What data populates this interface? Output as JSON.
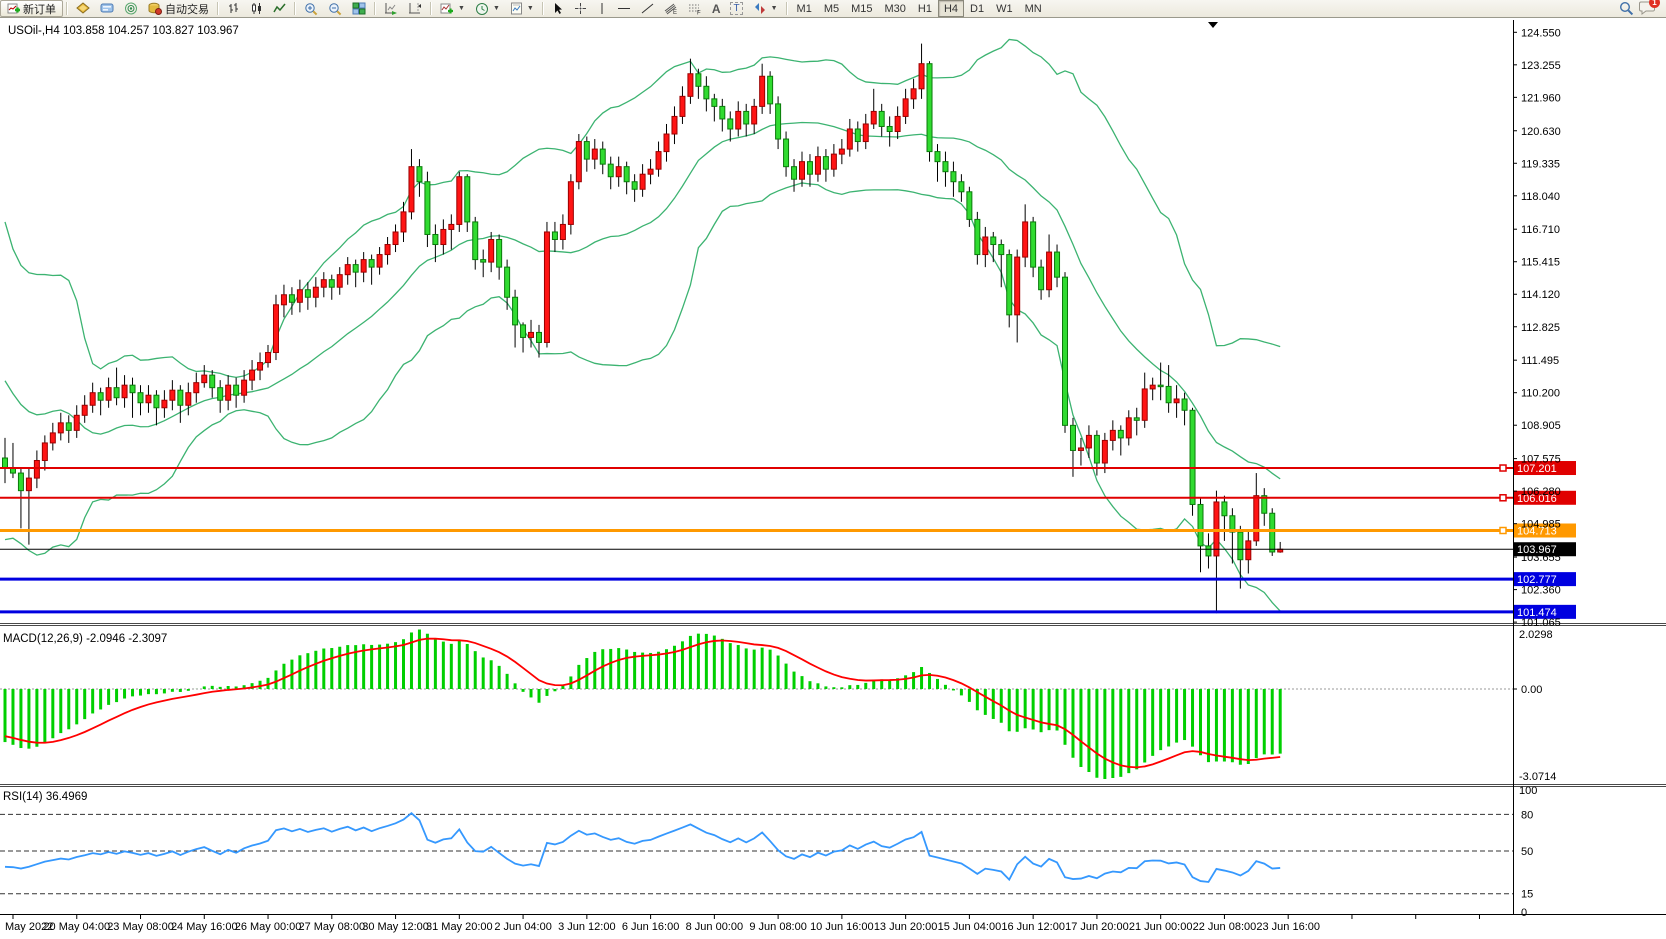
{
  "toolbar": {
    "new_order_label": "新订单",
    "auto_trading_label": "自动交易",
    "timeframes": [
      "M1",
      "M5",
      "M15",
      "M30",
      "H1",
      "H4",
      "D1",
      "W1",
      "MN"
    ],
    "active_timeframe": "H4",
    "text_tool_glyph": "A",
    "label_tool_glyph": "T",
    "chat_badge": "1"
  },
  "chart": {
    "symbol_label": "USOil-,H4",
    "ohlc_label": "103.858 104.257 103.827 103.967",
    "price_axis_ticks": [
      "124.550",
      "123.255",
      "121.960",
      "120.630",
      "119.335",
      "118.040",
      "116.710",
      "115.415",
      "114.120",
      "112.825",
      "111.495",
      "110.200",
      "108.905",
      "107.575",
      "106.280",
      "104.985",
      "103.655",
      "102.360",
      "101.065"
    ],
    "hlines": [
      {
        "price": 107.201,
        "label": "107.201",
        "color": "#e00000",
        "width": 2,
        "marker": true
      },
      {
        "price": 106.016,
        "label": "106.016",
        "color": "#e00000",
        "width": 2,
        "marker": true
      },
      {
        "price": 104.713,
        "label": "104.713",
        "color": "#ff9900",
        "width": 3,
        "marker": true
      },
      {
        "price": 103.967,
        "label": "103.967",
        "color": "#000000",
        "width": 1,
        "marker": false
      },
      {
        "price": 102.777,
        "label": "102.777",
        "color": "#0000e0",
        "width": 3,
        "marker": false
      },
      {
        "price": 101.474,
        "label": "101.474",
        "color": "#0000e0",
        "width": 3,
        "marker": false
      }
    ],
    "time_axis_labels": [
      "May 2022",
      "20 May 04:00",
      "23 May 08:00",
      "24 May 16:00",
      "26 May 00:00",
      "27 May 08:00",
      "30 May 12:00",
      "31 May 20:00",
      "2 Jun 04:00",
      "3 Jun 12:00",
      "6 Jun 16:00",
      "8 Jun 00:00",
      "9 Jun 08:00",
      "10 Jun 16:00",
      "13 Jun 20:00",
      "15 Jun 04:00",
      "16 Jun 12:00",
      "17 Jun 20:00",
      "21 Jun 00:00",
      "22 Jun 08:00",
      "23 Jun 16:00"
    ]
  },
  "macd": {
    "label": "MACD(12,26,9)",
    "values_label": "-2.0946 -2.3097",
    "params": [
      12,
      26,
      9
    ],
    "axis_labels": [
      "2.0298",
      "0.00",
      "-3.0714"
    ],
    "max": 2.0298,
    "min": -3.0714,
    "histogram_color": "#00cf00",
    "signal_color": "#ff0000"
  },
  "rsi": {
    "label": "RSI(14)",
    "value_label": "36.4969",
    "period": 14,
    "levels": [
      80,
      50,
      15
    ],
    "axis_labels": [
      "100",
      "80",
      "50",
      "15",
      "0"
    ],
    "line_color": "#3598fe"
  },
  "chart_data": {
    "type": "candlestick",
    "symbol": "USOil",
    "timeframe": "H4",
    "up_color": "#ff1414",
    "down_color": "#30db30",
    "band_color": "#3cb371",
    "label_every_n_bars": 8,
    "prehistory_closes": [
      116.5,
      117.2,
      115.0,
      112.5,
      110.0,
      107.5,
      106.5,
      108.0,
      111.5,
      114.5,
      116.0,
      114.0,
      111.0,
      108.5,
      107.0,
      108.5,
      110.0,
      111.0,
      110.0,
      107.6
    ],
    "bars": [
      [
        108.4,
        106.6,
        107.2
      ],
      [
        108.2,
        106.8,
        107.0
      ],
      [
        107.2,
        104.8,
        106.3
      ],
      [
        107.2,
        104.15,
        106.8
      ],
      [
        107.9,
        106.4,
        107.5
      ],
      [
        108.5,
        107.1,
        108.2
      ],
      [
        109.0,
        107.9,
        108.6
      ],
      [
        109.4,
        108.3,
        109.0
      ],
      [
        109.3,
        108.2,
        108.7
      ],
      [
        109.7,
        108.4,
        109.3
      ],
      [
        110.1,
        109.0,
        109.7
      ],
      [
        110.6,
        109.4,
        110.2
      ],
      [
        110.4,
        109.3,
        109.9
      ],
      [
        110.8,
        109.6,
        110.4
      ],
      [
        111.2,
        109.7,
        110.0
      ],
      [
        110.9,
        109.6,
        110.5
      ],
      [
        110.8,
        109.2,
        110.2
      ],
      [
        110.5,
        109.3,
        109.8
      ],
      [
        110.5,
        109.4,
        110.1
      ],
      [
        110.3,
        108.9,
        109.6
      ],
      [
        110.3,
        109.2,
        109.9
      ],
      [
        110.7,
        109.5,
        110.3
      ],
      [
        110.5,
        109.0,
        109.7
      ],
      [
        110.6,
        109.3,
        110.2
      ],
      [
        111.0,
        109.8,
        110.6
      ],
      [
        111.3,
        110.4,
        110.9
      ],
      [
        111.1,
        110.0,
        110.4
      ],
      [
        110.7,
        109.4,
        109.9
      ],
      [
        110.9,
        109.5,
        110.5
      ],
      [
        110.8,
        109.6,
        110.1
      ],
      [
        111.1,
        109.8,
        110.7
      ],
      [
        111.5,
        110.3,
        111.1
      ],
      [
        111.8,
        110.7,
        111.4
      ],
      [
        112.1,
        111.2,
        111.8
      ],
      [
        114.1,
        111.5,
        113.7
      ],
      [
        114.5,
        113.2,
        114.1
      ],
      [
        114.4,
        113.3,
        113.8
      ],
      [
        114.7,
        113.4,
        114.3
      ],
      [
        114.6,
        113.5,
        114.0
      ],
      [
        114.8,
        113.6,
        114.4
      ],
      [
        115.0,
        114.0,
        114.7
      ],
      [
        114.9,
        113.9,
        114.4
      ],
      [
        115.2,
        114.1,
        114.9
      ],
      [
        115.6,
        114.5,
        115.3
      ],
      [
        115.5,
        114.4,
        115.0
      ],
      [
        115.8,
        114.6,
        115.5
      ],
      [
        115.7,
        114.5,
        115.2
      ],
      [
        116.0,
        114.9,
        115.7
      ],
      [
        116.4,
        115.3,
        116.1
      ],
      [
        116.9,
        115.8,
        116.6
      ],
      [
        117.8,
        116.2,
        117.4
      ],
      [
        119.9,
        117.1,
        119.2
      ],
      [
        119.5,
        118.0,
        118.6
      ],
      [
        119.0,
        116.0,
        116.5
      ],
      [
        116.9,
        115.4,
        116.1
      ],
      [
        117.1,
        115.7,
        116.7
      ],
      [
        117.3,
        115.9,
        116.9
      ],
      [
        119.0,
        116.6,
        118.8
      ],
      [
        118.9,
        116.6,
        117.0
      ],
      [
        117.2,
        115.1,
        115.5
      ],
      [
        115.9,
        114.8,
        115.4
      ],
      [
        116.6,
        115.0,
        116.3
      ],
      [
        116.5,
        114.7,
        115.2
      ],
      [
        115.5,
        113.5,
        114.0
      ],
      [
        114.3,
        112.0,
        112.9
      ],
      [
        113.0,
        111.8,
        112.4
      ],
      [
        113.1,
        112.0,
        112.6
      ],
      [
        112.9,
        111.6,
        112.2
      ],
      [
        117.0,
        112.0,
        116.6
      ],
      [
        117.0,
        115.8,
        116.3
      ],
      [
        117.3,
        115.9,
        116.9
      ],
      [
        118.9,
        116.5,
        118.6
      ],
      [
        120.5,
        118.3,
        120.2
      ],
      [
        120.4,
        119.0,
        119.5
      ],
      [
        120.3,
        119.1,
        119.9
      ],
      [
        120.2,
        118.9,
        119.3
      ],
      [
        119.6,
        118.3,
        118.8
      ],
      [
        119.6,
        118.4,
        119.2
      ],
      [
        119.4,
        118.1,
        118.6
      ],
      [
        118.9,
        117.8,
        118.3
      ],
      [
        119.3,
        118.0,
        118.9
      ],
      [
        119.5,
        118.5,
        119.1
      ],
      [
        120.2,
        118.8,
        119.8
      ],
      [
        120.9,
        119.4,
        120.5
      ],
      [
        121.6,
        120.1,
        121.2
      ],
      [
        122.4,
        120.9,
        122.0
      ],
      [
        123.5,
        121.7,
        122.9
      ],
      [
        123.1,
        121.9,
        122.4
      ],
      [
        122.8,
        121.4,
        121.9
      ],
      [
        122.1,
        121.0,
        121.6
      ],
      [
        121.9,
        120.6,
        121.1
      ],
      [
        121.4,
        120.2,
        120.7
      ],
      [
        121.8,
        120.4,
        121.4
      ],
      [
        121.7,
        120.4,
        120.9
      ],
      [
        121.9,
        120.5,
        121.6
      ],
      [
        123.3,
        121.3,
        122.8
      ],
      [
        123.0,
        121.3,
        121.7
      ],
      [
        122.0,
        119.9,
        120.3
      ],
      [
        120.6,
        118.8,
        119.2
      ],
      [
        119.5,
        118.2,
        118.7
      ],
      [
        119.8,
        118.4,
        119.4
      ],
      [
        119.7,
        118.4,
        118.9
      ],
      [
        120.0,
        118.6,
        119.6
      ],
      [
        119.9,
        118.6,
        119.1
      ],
      [
        120.1,
        118.8,
        119.7
      ],
      [
        120.3,
        119.3,
        119.9
      ],
      [
        121.1,
        119.6,
        120.7
      ],
      [
        121.0,
        119.8,
        120.2
      ],
      [
        121.3,
        119.9,
        120.9
      ],
      [
        122.3,
        120.7,
        121.4
      ],
      [
        121.7,
        120.4,
        120.8
      ],
      [
        121.2,
        120.0,
        120.6
      ],
      [
        121.6,
        120.3,
        121.2
      ],
      [
        122.3,
        120.9,
        121.9
      ],
      [
        122.7,
        121.5,
        122.3
      ],
      [
        124.1,
        121.9,
        123.3
      ],
      [
        123.4,
        119.4,
        119.8
      ],
      [
        120.1,
        118.6,
        119.4
      ],
      [
        119.8,
        118.4,
        119.0
      ],
      [
        119.4,
        118.0,
        118.6
      ],
      [
        118.9,
        117.8,
        118.2
      ],
      [
        118.4,
        116.8,
        117.1
      ],
      [
        117.4,
        115.3,
        115.7
      ],
      [
        116.8,
        115.2,
        116.4
      ],
      [
        116.6,
        115.4,
        116.1
      ],
      [
        116.3,
        114.4,
        115.7
      ],
      [
        115.9,
        112.8,
        113.3
      ],
      [
        115.9,
        112.2,
        115.6
      ],
      [
        117.7,
        115.2,
        117.0
      ],
      [
        117.2,
        114.8,
        115.2
      ],
      [
        115.5,
        113.9,
        114.3
      ],
      [
        116.5,
        114.0,
        115.8
      ],
      [
        116.1,
        114.4,
        114.8
      ],
      [
        115.0,
        108.6,
        108.9
      ],
      [
        109.2,
        106.85,
        107.9
      ],
      [
        108.4,
        107.3,
        108.0
      ],
      [
        108.9,
        107.6,
        108.5
      ],
      [
        108.7,
        106.9,
        107.4
      ],
      [
        108.6,
        107.0,
        108.3
      ],
      [
        109.1,
        107.9,
        108.7
      ],
      [
        108.9,
        107.7,
        108.4
      ],
      [
        109.5,
        108.1,
        109.2
      ],
      [
        109.6,
        108.5,
        109.1
      ],
      [
        111.0,
        108.8,
        110.35
      ],
      [
        110.8,
        109.9,
        110.5
      ],
      [
        111.4,
        109.9,
        110.45
      ],
      [
        111.3,
        109.4,
        109.8
      ],
      [
        110.5,
        109.2,
        109.95
      ],
      [
        110.2,
        108.9,
        109.5
      ],
      [
        109.6,
        105.3,
        105.75
      ],
      [
        106.0,
        103.05,
        104.1
      ],
      [
        104.6,
        103.2,
        103.7
      ],
      [
        106.3,
        101.42,
        105.85
      ],
      [
        106.1,
        104.3,
        105.3
      ],
      [
        105.6,
        103.4,
        104.65
      ],
      [
        104.9,
        102.4,
        103.55
      ],
      [
        104.7,
        103.0,
        104.3
      ],
      [
        107.0,
        104.1,
        106.1
      ],
      [
        106.4,
        104.9,
        105.4
      ],
      [
        105.6,
        103.7,
        103.858
      ],
      [
        104.257,
        103.827,
        103.967
      ]
    ]
  }
}
